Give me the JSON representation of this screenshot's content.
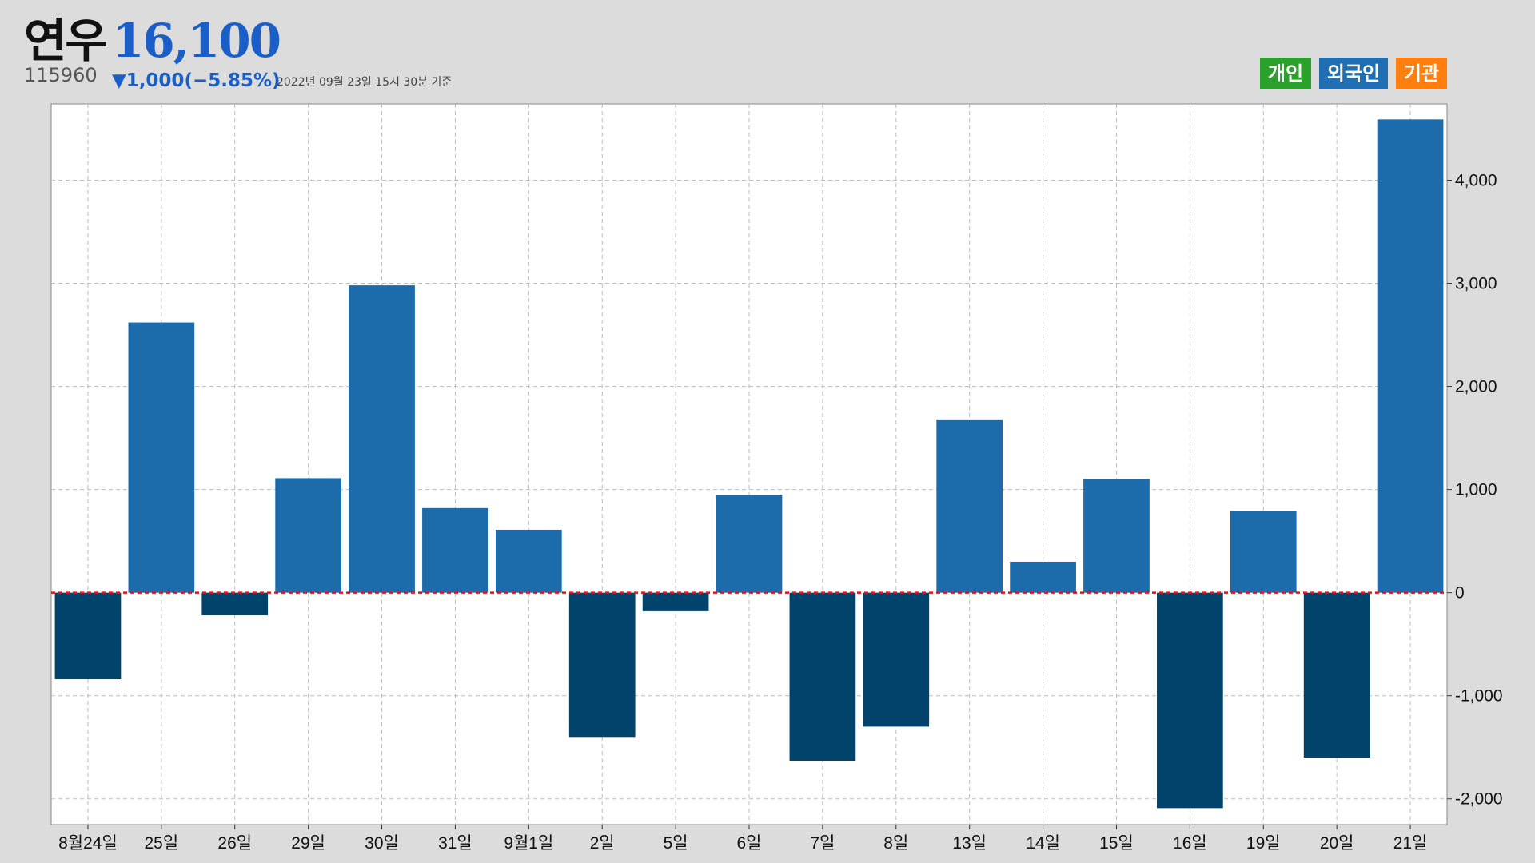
{
  "header": {
    "name": "연우",
    "price": "16,100",
    "code": "115960",
    "change": "▼1,000(−5.85%)",
    "timestamp": "2022년 09월 23일 15시 30분 기준"
  },
  "legend": [
    {
      "label": "개인",
      "color": "#2ca02c"
    },
    {
      "label": "외국인",
      "color": "#1f6fb2"
    },
    {
      "label": "기관",
      "color": "#ff7f0e"
    }
  ],
  "colors": {
    "positive": "#1c6bab",
    "negative": "#02436b",
    "zero_line": "#e0151a",
    "background": "#dcdcdc",
    "plot_bg": "#ffffff",
    "grid": "#bdbdbd"
  },
  "chart_data": {
    "type": "bar",
    "categories": [
      "8월24일",
      "25일",
      "26일",
      "29일",
      "30일",
      "31일",
      "9월1일",
      "2일",
      "5일",
      "6일",
      "7일",
      "8일",
      "13일",
      "14일",
      "15일",
      "16일",
      "19일",
      "20일",
      "21일"
    ],
    "series": [
      {
        "values": [
          -840,
          2620,
          -220,
          1110,
          2980,
          820,
          610,
          -1400,
          -180,
          950,
          -1630,
          -1300,
          1680,
          300,
          1100,
          -2090,
          790,
          -1600,
          4590
        ]
      }
    ],
    "ylim": [
      -2250,
      4740
    ],
    "yticks": [
      -2000,
      -1000,
      0,
      1000,
      2000,
      3000,
      4000
    ],
    "ytick_labels": [
      "-2,000",
      "-1,000",
      "0",
      "1,000",
      "2,000",
      "3,000",
      "4,000"
    ],
    "y_axis_position": "right",
    "grid": true,
    "zero_line": true,
    "legend_position": "top-right"
  }
}
